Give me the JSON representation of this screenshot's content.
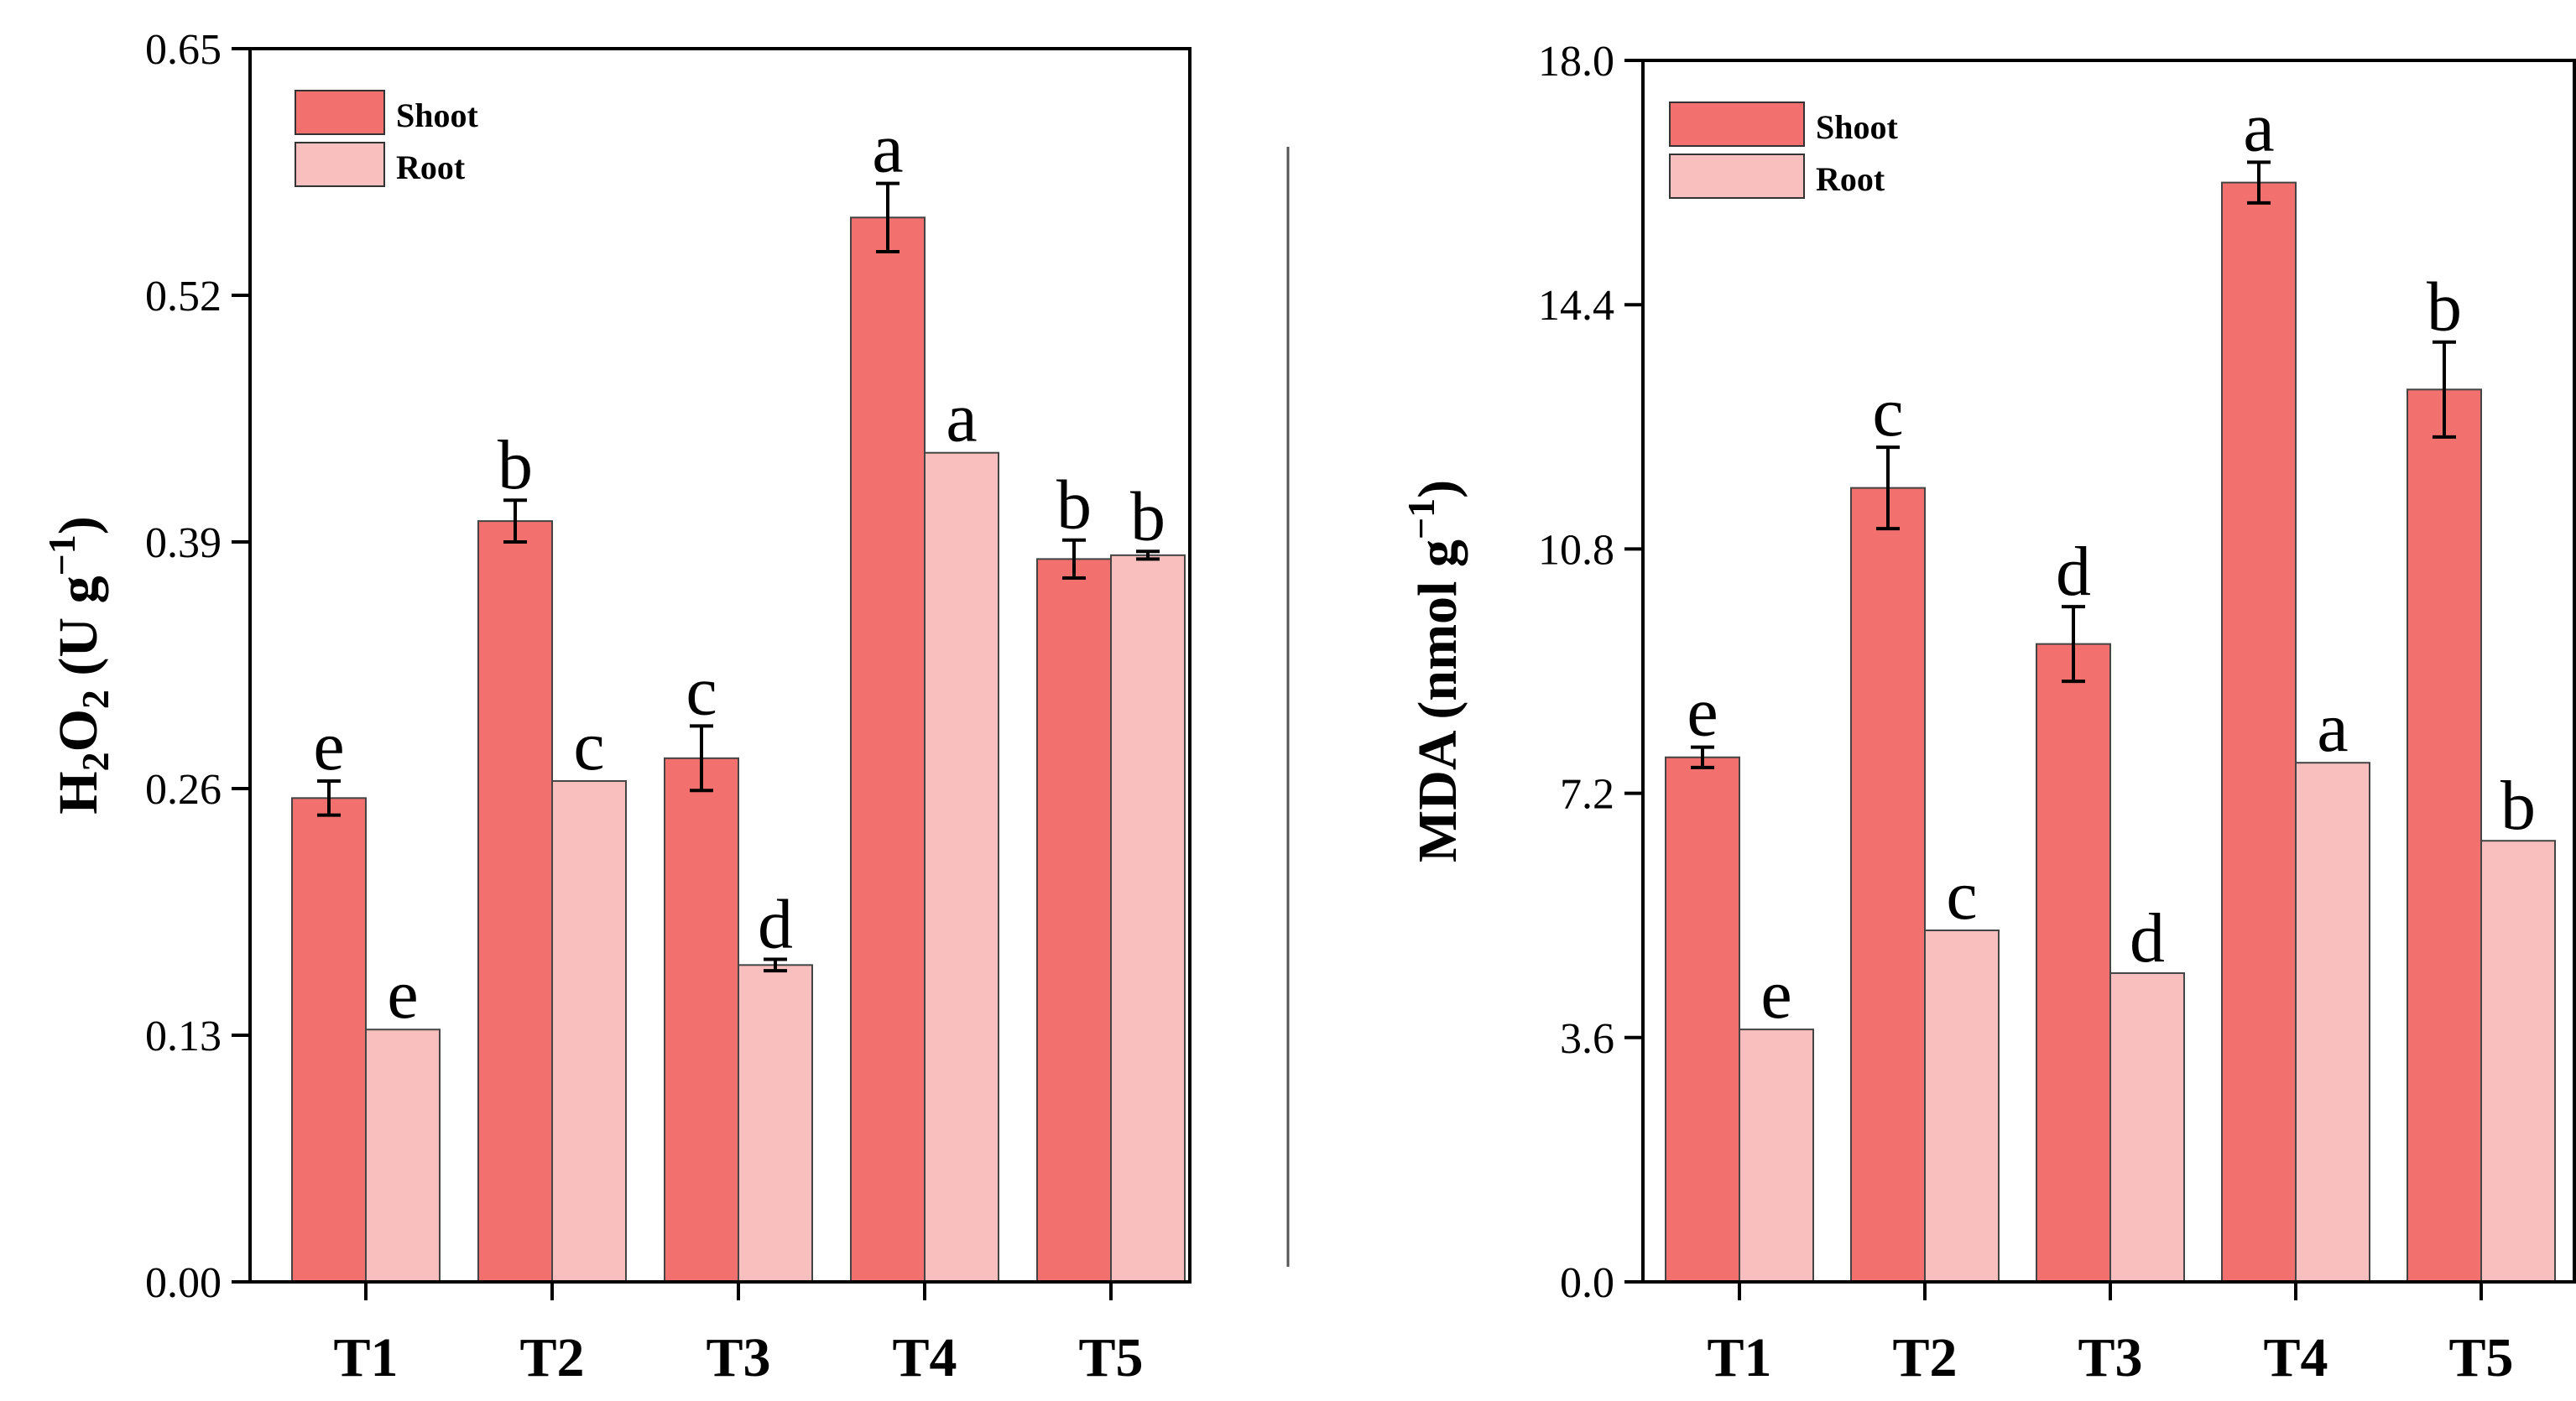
{
  "chart_data": [
    {
      "type": "bar",
      "panel": "left",
      "ylabel": "H2O2 (U g−1)",
      "ylabel_main": "H",
      "ylabel_sub1": "2",
      "ylabel_mid": "O",
      "ylabel_sub2": "2",
      "ylabel_unit": " (U g",
      "ylabel_sup": "−1",
      "ylabel_close": ")",
      "categories": [
        "T1",
        "T2",
        "T3",
        "T4",
        "T5"
      ],
      "ylim": [
        0,
        0.65
      ],
      "yticks": [
        "0.00",
        "0.13",
        "0.26",
        "0.39",
        "0.52",
        "0.65"
      ],
      "series": [
        {
          "name": "Shoot",
          "color": "#F2706E",
          "values": [
            0.255,
            0.401,
            0.276,
            0.561,
            0.381
          ],
          "errors": [
            0.009,
            0.011,
            0.017,
            0.018,
            0.01
          ],
          "letters": [
            "e",
            "b",
            "c",
            "a",
            "b"
          ]
        },
        {
          "name": "Root",
          "color": "#F9BEBE",
          "values": [
            0.133,
            0.264,
            0.167,
            0.437,
            0.383
          ],
          "errors": [
            0.0,
            0.0,
            0.003,
            0.0,
            0.002
          ],
          "letters": [
            "e",
            "c",
            "d",
            "a",
            "b"
          ]
        }
      ],
      "legend": {
        "position": "top-left",
        "labels": [
          "Shoot",
          "Root"
        ]
      }
    },
    {
      "type": "bar",
      "panel": "right",
      "ylabel": "MDA (nmol g−1)",
      "ylabel_main": "MDA (nmol g",
      "ylabel_sup": "−1",
      "ylabel_close": ")",
      "categories": [
        "T1",
        "T2",
        "T3",
        "T4",
        "T5"
      ],
      "ylim": [
        0,
        18
      ],
      "yticks": [
        "0.0",
        "3.6",
        "7.2",
        "10.8",
        "14.4",
        "18.0"
      ],
      "series": [
        {
          "name": "Shoot",
          "color": "#F2706E",
          "values": [
            7.73,
            11.7,
            9.4,
            16.2,
            13.15
          ],
          "errors": [
            0.15,
            0.6,
            0.55,
            0.3,
            0.7
          ],
          "letters": [
            "e",
            "c",
            "d",
            "a",
            "b"
          ]
        },
        {
          "name": "Root",
          "color": "#F9BEBE",
          "values": [
            3.72,
            5.18,
            4.55,
            7.65,
            6.5
          ],
          "errors": [
            0.0,
            0.0,
            0.0,
            0.0,
            0.0
          ],
          "letters": [
            "e",
            "c",
            "d",
            "a",
            "b"
          ]
        }
      ],
      "legend": {
        "position": "top-left",
        "labels": [
          "Shoot",
          "Root"
        ]
      }
    }
  ]
}
